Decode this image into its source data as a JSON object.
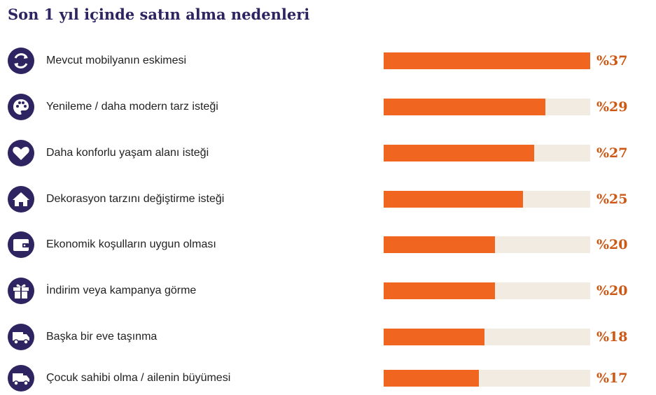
{
  "chart_data": {
    "type": "bar",
    "title": "Son 1 yıl içinde satın alma nedenleri",
    "xlim": [
      0,
      37
    ],
    "orientation": "horizontal",
    "colors": {
      "bar": "#f06520",
      "track": "#f1ebe2",
      "icon_bg": "#2e2461",
      "title": "#2e2461",
      "value": "#cd5713"
    },
    "rows": [
      {
        "label": "Mevcut mobilyanın eskimesi",
        "value": 37,
        "value_label": "%37",
        "icon": "refresh-icon"
      },
      {
        "label": "Yenileme / daha modern tarz isteği",
        "value": 29,
        "value_label": "%29",
        "icon": "palette-icon"
      },
      {
        "label": "Daha konforlu yaşam alanı isteği",
        "value": 27,
        "value_label": "%27",
        "icon": "heart-icon"
      },
      {
        "label": "Dekorasyon tarzını değiştirme isteği",
        "value": 25,
        "value_label": "%25",
        "icon": "home-icon"
      },
      {
        "label": "Ekonomik koşulların uygun olması",
        "value": 20,
        "value_label": "%20",
        "icon": "wallet-icon"
      },
      {
        "label": "İndirim veya kampanya görme",
        "value": 20,
        "value_label": "%20",
        "icon": "gift-icon"
      },
      {
        "label": "Başka bir eve taşınma",
        "value": 18,
        "value_label": "%18",
        "icon": "truck-icon"
      },
      {
        "label": "Çocuk sahibi olma / ailenin büyümesi",
        "value": 17,
        "value_label": "%17",
        "icon": "truck-icon"
      }
    ]
  }
}
